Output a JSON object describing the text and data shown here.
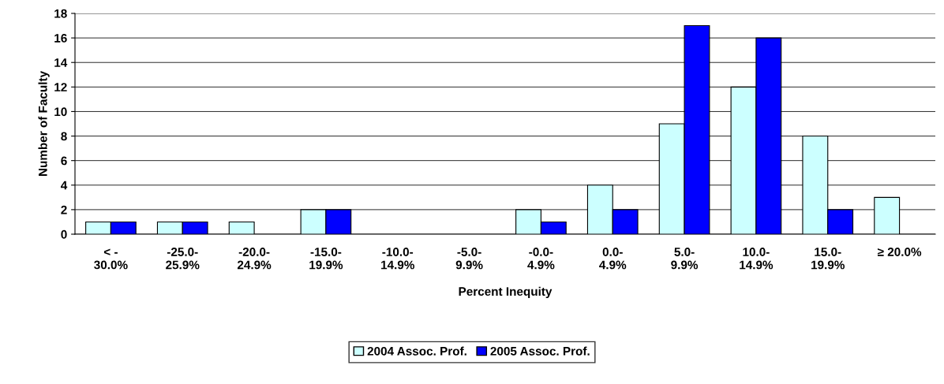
{
  "chart_data": {
    "type": "bar",
    "xlabel": "Percent Inequity",
    "ylabel": "Number of Faculty",
    "categories": [
      "< -\n30.0%",
      "-25.0-\n25.9%",
      "-20.0-\n24.9%",
      "-15.0-\n19.9%",
      "-10.0-\n14.9%",
      "-5.0-\n9.9%",
      "-0.0-\n4.9%",
      "0.0-\n4.9%",
      "5.0-\n9.9%",
      "10.0-\n14.9%",
      "15.0-\n19.9%",
      "≥ 20.0%"
    ],
    "series": [
      {
        "name": "2004 Assoc. Prof.",
        "color": "#ccffff",
        "values": [
          1,
          1,
          1,
          2,
          null,
          null,
          2,
          4,
          9,
          12,
          8,
          3
        ]
      },
      {
        "name": "2005 Assoc. Prof.",
        "color": "#0000ff",
        "values": [
          1,
          1,
          null,
          2,
          null,
          null,
          1,
          2,
          17,
          16,
          2,
          null
        ]
      }
    ],
    "ylim": [
      0,
      18
    ],
    "yticks": [
      0,
      2,
      4,
      6,
      8,
      10,
      12,
      14,
      16,
      18
    ],
    "grid": "y",
    "legend": "bottom"
  }
}
